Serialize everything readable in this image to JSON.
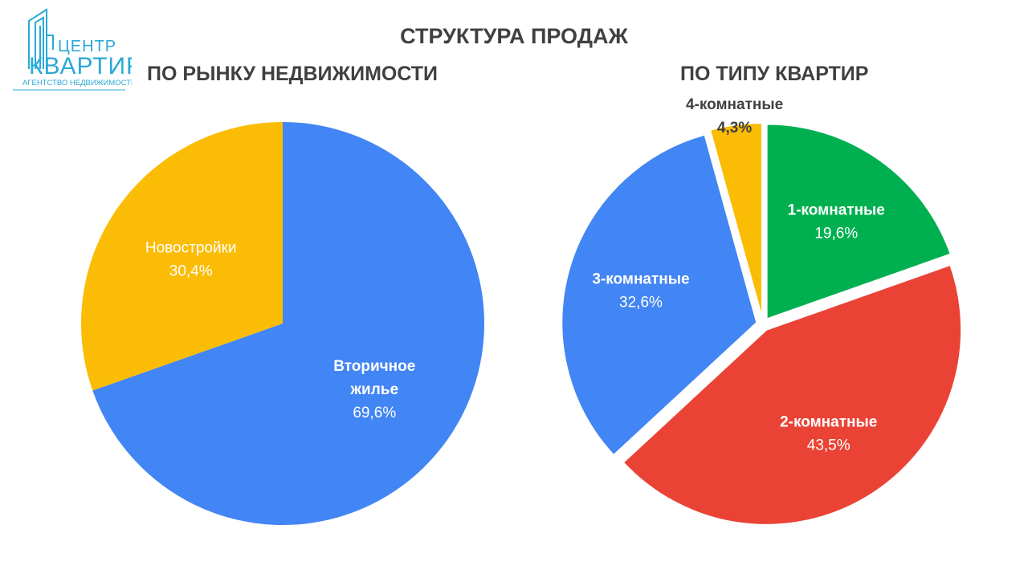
{
  "logo": {
    "line1": "ЦЕНТР",
    "line2": "КВАРТИР",
    "tagline": "АГЕНТСТВО НЕДВИЖИМОСТИ",
    "color": "#2aa9d6"
  },
  "main_title": "СТРУКТУРА ПРОДАЖ",
  "chart_data": [
    {
      "type": "pie",
      "title": "ПО РЫНКУ НЕДВИЖИМОСТИ",
      "slices": [
        {
          "label": [
            "Вторичное",
            "жилье"
          ],
          "value_label": "69,6%",
          "value": 69.6,
          "color": "#4285f4",
          "label_color": "#ffffff"
        },
        {
          "label": [
            "Новостройки"
          ],
          "value_label": "30,4%",
          "value": 30.4,
          "color": "#fbbc05",
          "label_color": "#ffffff"
        }
      ]
    },
    {
      "type": "pie",
      "title": "ПО ТИПУ КВАРТИР",
      "exploded": true,
      "slices": [
        {
          "label": [
            "1-комнатные"
          ],
          "value_label": "19,6%",
          "value": 19.6,
          "color": "#00b050",
          "label_color": "#ffffff"
        },
        {
          "label": [
            "2-комнатные"
          ],
          "value_label": "43,5%",
          "value": 43.5,
          "color": "#ea4335",
          "label_color": "#ffffff"
        },
        {
          "label": [
            "3-комнатные"
          ],
          "value_label": "32,6%",
          "value": 32.6,
          "color": "#4285f4",
          "label_color": "#ffffff"
        },
        {
          "label": [
            "4-комнатные"
          ],
          "value_label": "4,3%",
          "value": 4.3,
          "color": "#fbbc05",
          "label_color": "#404040",
          "label_outside": true
        }
      ]
    }
  ]
}
